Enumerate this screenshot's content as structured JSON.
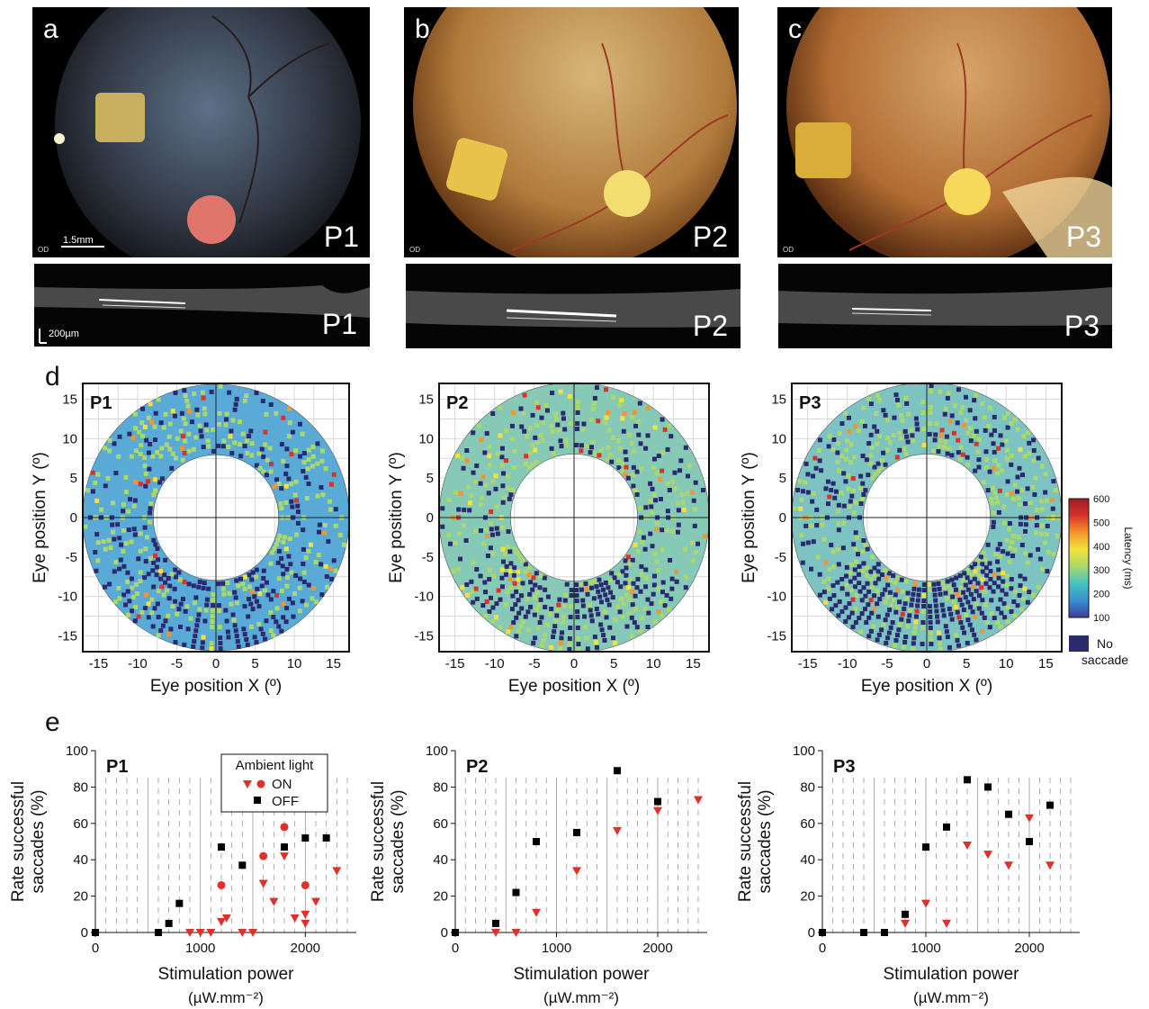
{
  "panel_labels": {
    "a": "a",
    "b": "b",
    "c": "c",
    "d": "d",
    "e": "e"
  },
  "fundus": [
    {
      "letter": "a",
      "patient": "P1",
      "od": "OD",
      "scale": "1.5mm",
      "bg": "#2f3642",
      "patch": "#c8b060",
      "disc": "#e0756c"
    },
    {
      "letter": "b",
      "patient": "P2",
      "od": "OD",
      "scale": "",
      "bg": "#b07a3a",
      "patch": "#e8c34a",
      "disc": "#f3dc70"
    },
    {
      "letter": "c",
      "patient": "P3",
      "od": "OD",
      "scale": "",
      "bg": "#b06c32",
      "patch": "#d9ad3c",
      "disc": "#f6d85a"
    }
  ],
  "oct": [
    {
      "patient": "P1",
      "scale": "200µm"
    },
    {
      "patient": "P2",
      "scale": ""
    },
    {
      "patient": "P3",
      "scale": ""
    }
  ],
  "maps": {
    "xlabel": "Eye position X (º)",
    "ylabel": "Eye position Y (º)",
    "ticks": [
      -15,
      -10,
      -5,
      0,
      5,
      10,
      15
    ],
    "range": [
      -17,
      17
    ],
    "inner_radius_deg": 8,
    "outer_radius_deg": 17,
    "panels": [
      {
        "patient": "P1",
        "base": "#5aaad8",
        "no_saccade_fraction": 0.12,
        "hot_fraction": 0.04
      },
      {
        "patient": "P2",
        "base": "#86c9b6",
        "no_saccade_fraction": 0.15,
        "hot_fraction": 0.07
      },
      {
        "patient": "P3",
        "base": "#7cc3c2",
        "no_saccade_fraction": 0.2,
        "hot_fraction": 0.05
      }
    ],
    "colorbar": {
      "label": "Latency (ms)",
      "ticks": [
        600,
        500,
        400,
        300,
        200,
        100
      ],
      "colors": [
        "#3b3f9a",
        "#3a8fd0",
        "#47c2c0",
        "#a9d86c",
        "#f2e33c",
        "#f3962c",
        "#d9332a",
        "#9c1c24"
      ],
      "no_saccade_label_1": "No",
      "no_saccade_label_2": "saccade",
      "no_saccade_color": "#2b2a6e"
    }
  },
  "chart_data": [
    {
      "type": "scatter",
      "title": "P1",
      "xlabel": "Stimulation power",
      "xunit": "(µW.mm⁻²)",
      "ylabel_1": "Rate successful",
      "ylabel_2": "saccades (%)",
      "xlim": [
        0,
        2400
      ],
      "ylim": [
        0,
        100
      ],
      "xticks": [
        0,
        1000,
        2000
      ],
      "yticks": [
        0,
        20,
        40,
        60,
        80,
        100
      ],
      "legend": {
        "title": "Ambient light",
        "on": "ON",
        "off": "OFF"
      },
      "series": [
        {
          "name": "ON",
          "marker": "triangle",
          "color": "#e0302a",
          "points": [
            [
              1200,
              6
            ],
            [
              1250,
              8
            ],
            [
              900,
              0
            ],
            [
              1000,
              0
            ],
            [
              1100,
              0
            ],
            [
              1400,
              0
            ],
            [
              1500,
              0
            ],
            [
              1600,
              27
            ],
            [
              1700,
              17
            ],
            [
              1800,
              42
            ],
            [
              1900,
              8
            ],
            [
              2000,
              10
            ],
            [
              2000,
              5
            ],
            [
              2100,
              17
            ],
            [
              2300,
              34
            ]
          ]
        },
        {
          "name": "ON",
          "marker": "circle",
          "color": "#e0302a",
          "points": [
            [
              1200,
              26
            ],
            [
              1600,
              42
            ],
            [
              1800,
              58
            ],
            [
              2000,
              26
            ]
          ]
        },
        {
          "name": "OFF",
          "marker": "square",
          "color": "#000000",
          "points": [
            [
              0,
              0
            ],
            [
              600,
              0
            ],
            [
              700,
              5
            ],
            [
              800,
              16
            ],
            [
              1200,
              47
            ],
            [
              1400,
              37
            ],
            [
              1800,
              47
            ],
            [
              2000,
              52
            ],
            [
              2200,
              52
            ]
          ]
        }
      ]
    },
    {
      "type": "scatter",
      "title": "P2",
      "xlabel": "Stimulation power",
      "xunit": "(µW.mm⁻²)",
      "ylabel_1": "Rate successful",
      "ylabel_2": "saccades (%)",
      "xlim": [
        0,
        2400
      ],
      "ylim": [
        0,
        100
      ],
      "xticks": [
        0,
        1000,
        2000
      ],
      "yticks": [
        0,
        20,
        40,
        60,
        80,
        100
      ],
      "series": [
        {
          "name": "ON",
          "marker": "triangle",
          "color": "#e0302a",
          "points": [
            [
              400,
              0
            ],
            [
              600,
              0
            ],
            [
              800,
              11
            ],
            [
              1200,
              34
            ],
            [
              1600,
              56
            ],
            [
              2000,
              67
            ],
            [
              2400,
              73
            ]
          ]
        },
        {
          "name": "OFF",
          "marker": "square",
          "color": "#000000",
          "points": [
            [
              0,
              0
            ],
            [
              400,
              5
            ],
            [
              600,
              22
            ],
            [
              800,
              50
            ],
            [
              1200,
              55
            ],
            [
              1600,
              89
            ],
            [
              2000,
              72
            ]
          ]
        }
      ]
    },
    {
      "type": "scatter",
      "title": "P3",
      "xlabel": "Stimulation power",
      "xunit": "(µW.mm⁻²)",
      "ylabel_1": "Rate successful",
      "ylabel_2": "saccades (%)",
      "xlim": [
        0,
        2400
      ],
      "ylim": [
        0,
        100
      ],
      "xticks": [
        0,
        1000,
        2000
      ],
      "yticks": [
        0,
        20,
        40,
        60,
        80,
        100
      ],
      "series": [
        {
          "name": "ON",
          "marker": "triangle",
          "color": "#e0302a",
          "points": [
            [
              800,
              5
            ],
            [
              1000,
              16
            ],
            [
              1200,
              5
            ],
            [
              1400,
              48
            ],
            [
              1600,
              43
            ],
            [
              1800,
              37
            ],
            [
              2000,
              63
            ],
            [
              2200,
              37
            ]
          ]
        },
        {
          "name": "OFF",
          "marker": "square",
          "color": "#000000",
          "points": [
            [
              0,
              0
            ],
            [
              400,
              0
            ],
            [
              600,
              0
            ],
            [
              800,
              10
            ],
            [
              1000,
              47
            ],
            [
              1200,
              58
            ],
            [
              1400,
              84
            ],
            [
              1600,
              80
            ],
            [
              1800,
              65
            ],
            [
              2000,
              50
            ],
            [
              2200,
              70
            ]
          ]
        }
      ]
    }
  ]
}
